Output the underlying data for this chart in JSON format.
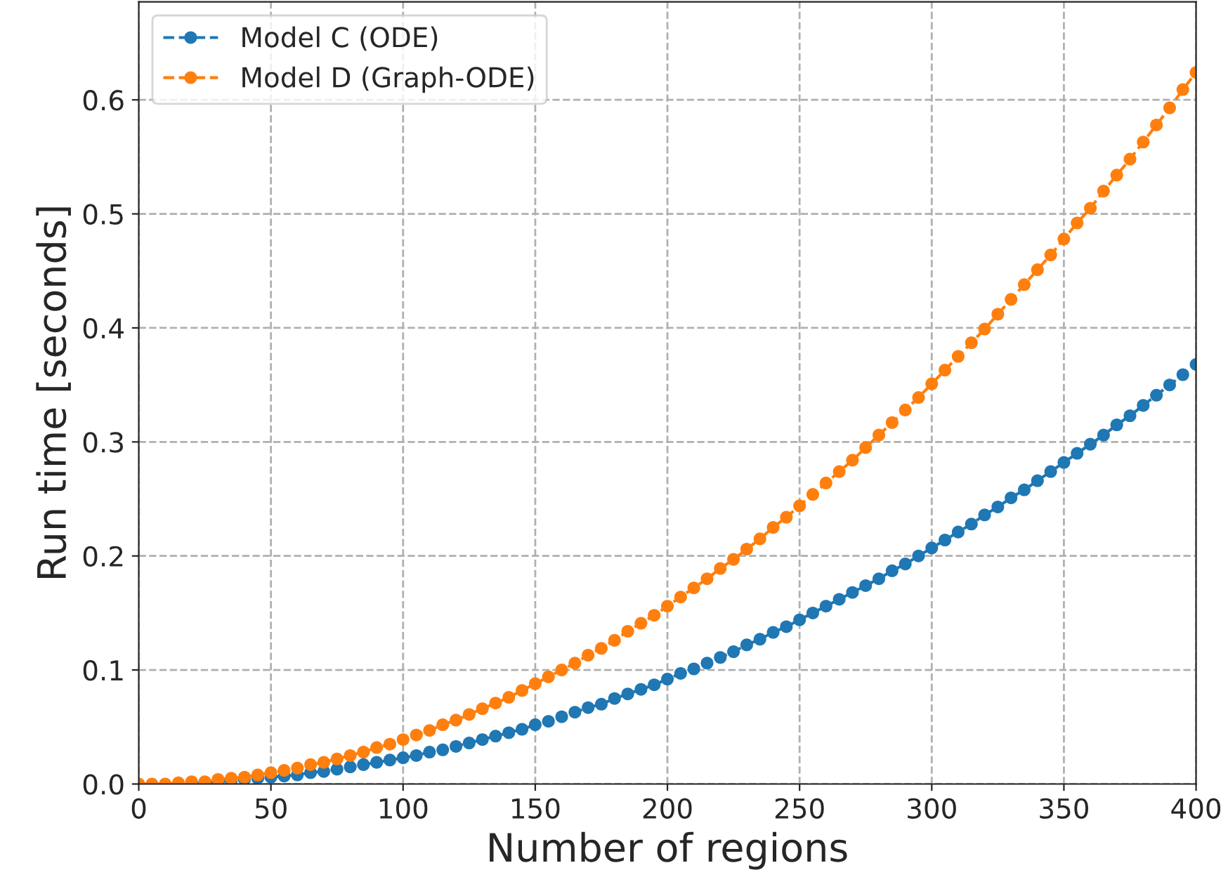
{
  "chart_data": {
    "type": "line",
    "xlabel": "Number of regions",
    "ylabel": "Run time [seconds]",
    "x": [
      0,
      5,
      10,
      15,
      20,
      25,
      30,
      35,
      40,
      45,
      50,
      55,
      60,
      65,
      70,
      75,
      80,
      85,
      90,
      95,
      100,
      105,
      110,
      115,
      120,
      125,
      130,
      135,
      140,
      145,
      150,
      155,
      160,
      165,
      170,
      175,
      180,
      185,
      190,
      195,
      200,
      205,
      210,
      215,
      220,
      225,
      230,
      235,
      240,
      245,
      250,
      255,
      260,
      265,
      270,
      275,
      280,
      285,
      290,
      295,
      300,
      305,
      310,
      315,
      320,
      325,
      330,
      335,
      340,
      345,
      350,
      355,
      360,
      365,
      370,
      375,
      380,
      385,
      390,
      395,
      400
    ],
    "series": [
      {
        "name": "Model C (ODE)",
        "color": "#1f77b4",
        "values": [
          null,
          null,
          null,
          null,
          0.001,
          0.001,
          0.002,
          0.003,
          0.004,
          0.005,
          0.006,
          0.007,
          0.008,
          0.01,
          0.011,
          0.013,
          0.015,
          0.017,
          0.019,
          0.021,
          0.023,
          0.025,
          0.028,
          0.03,
          0.033,
          0.036,
          0.039,
          0.042,
          0.045,
          0.048,
          0.052,
          0.055,
          0.059,
          0.063,
          0.067,
          0.07,
          0.075,
          0.079,
          0.083,
          0.087,
          0.092,
          0.097,
          0.101,
          0.106,
          0.111,
          0.116,
          0.122,
          0.127,
          0.133,
          0.138,
          0.144,
          0.15,
          0.156,
          0.162,
          0.168,
          0.174,
          0.18,
          0.187,
          0.193,
          0.2,
          0.207,
          0.214,
          0.221,
          0.228,
          0.236,
          0.243,
          0.251,
          0.258,
          0.266,
          0.274,
          0.282,
          0.29,
          0.298,
          0.306,
          0.315,
          0.323,
          0.332,
          0.341,
          0.35,
          0.359,
          0.368
        ]
      },
      {
        "name": "Model D (Graph-ODE)",
        "color": "#ff7f0e",
        "values": [
          0,
          0,
          0,
          0.001,
          0.002,
          0.002,
          0.004,
          0.005,
          0.006,
          0.008,
          0.01,
          0.012,
          0.014,
          0.017,
          0.019,
          0.022,
          0.025,
          0.028,
          0.032,
          0.035,
          0.039,
          0.043,
          0.047,
          0.052,
          0.056,
          0.061,
          0.066,
          0.071,
          0.076,
          0.082,
          0.088,
          0.094,
          0.1,
          0.106,
          0.113,
          0.119,
          0.126,
          0.134,
          0.141,
          0.148,
          0.156,
          0.164,
          0.172,
          0.18,
          0.189,
          0.197,
          0.206,
          0.215,
          0.225,
          0.234,
          0.244,
          0.254,
          0.264,
          0.274,
          0.284,
          0.295,
          0.306,
          0.317,
          0.328,
          0.339,
          0.351,
          0.363,
          0.375,
          0.387,
          0.399,
          0.412,
          0.425,
          0.438,
          0.451,
          0.464,
          0.478,
          0.492,
          0.505,
          0.52,
          0.534,
          0.548,
          0.563,
          0.578,
          0.593,
          0.609,
          0.624
        ]
      }
    ],
    "xlim": [
      0,
      400
    ],
    "xticks": [
      0,
      50,
      100,
      150,
      200,
      250,
      300,
      350,
      400
    ],
    "ylim": [
      0,
      0.686
    ],
    "yticks": [
      {
        "value": 0,
        "label": "0.0"
      },
      {
        "value": 0.1,
        "label": "0.1"
      },
      {
        "value": 0.2,
        "label": "0.2"
      },
      {
        "value": 0.3,
        "label": "0.3"
      },
      {
        "value": 0.4,
        "label": "0.4"
      },
      {
        "value": 0.5,
        "label": "0.5"
      },
      {
        "value": 0.6,
        "label": "0.6"
      }
    ],
    "grid": true,
    "legend": "top left",
    "marker": "circle",
    "line_style": "dashed"
  }
}
